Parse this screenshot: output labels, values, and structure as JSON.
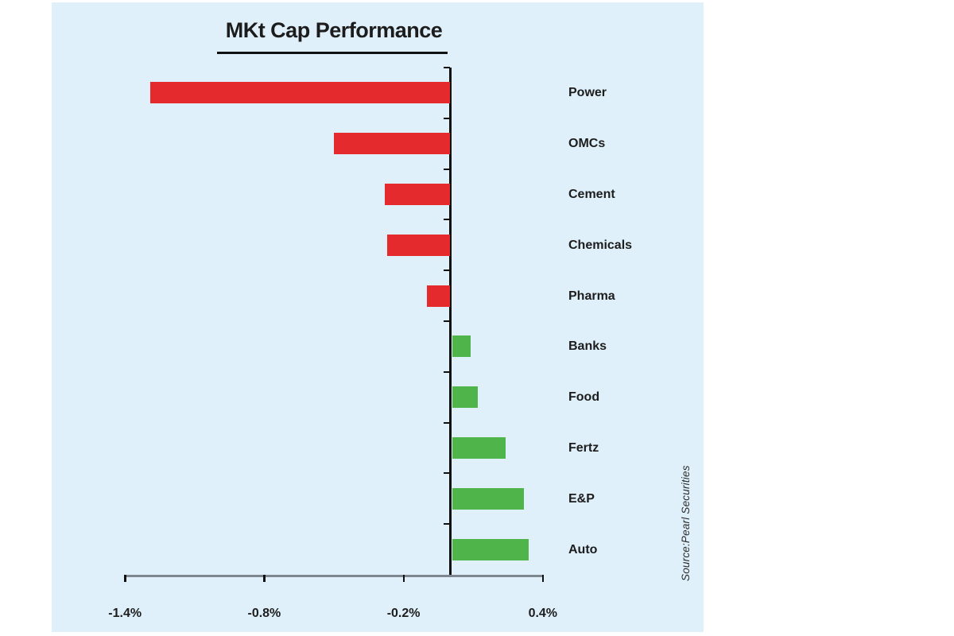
{
  "chart_data": {
    "type": "bar",
    "orientation": "horizontal",
    "title": "MKt Cap Performance",
    "unit": "%",
    "categories": [
      "Power",
      "OMCs",
      "Cement",
      "Chemicals",
      "Pharma",
      "Banks",
      "Food",
      "Fertz",
      "E&P",
      "Auto"
    ],
    "values": [
      -1.29,
      -0.5,
      -0.28,
      -0.27,
      -0.1,
      0.08,
      0.11,
      0.23,
      0.31,
      0.33
    ],
    "x_tick_values": [
      -1.4,
      -0.8,
      -0.2,
      0.4
    ],
    "x_tick_labels": [
      "-1.4%",
      "-0.8%",
      "-0.2%",
      "0.4%"
    ],
    "xlim": [
      -1.5,
      0.45
    ],
    "grid": false,
    "legend": "none",
    "value_axis_side": "bottom",
    "category_label_side": "right",
    "source_note": "Source:Pearl Securities"
  },
  "colors": {
    "panel_background": "#dff0fa",
    "negative_bar": "#e42a2c",
    "positive_bar": "#4fb54a",
    "axis_line": "#111111",
    "baseline": "#7e8790",
    "text": "#1d1d1d"
  }
}
